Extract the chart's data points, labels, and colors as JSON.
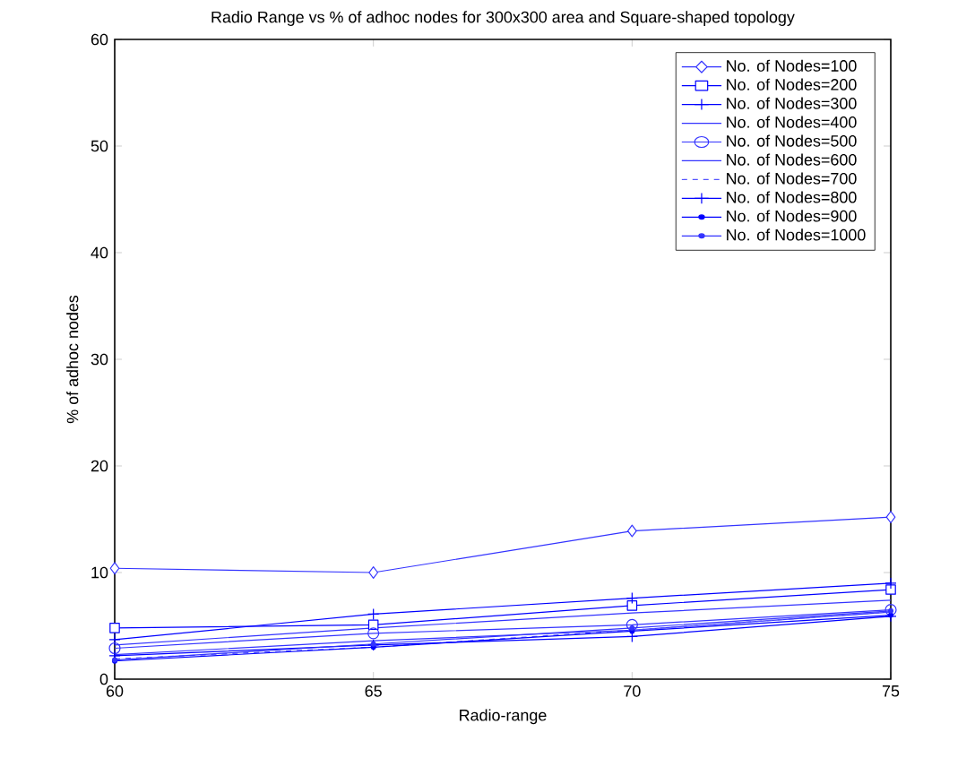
{
  "chart_data": {
    "type": "line",
    "title": "Radio Range vs % of adhoc nodes for 300x300 area and Square-shaped topology",
    "xlabel": "Radio-range",
    "ylabel": "% of adhoc nodes",
    "x": [
      60,
      65,
      70,
      75
    ],
    "xlim": [
      60,
      75
    ],
    "xticks": [
      60,
      65,
      70,
      75
    ],
    "ylim": [
      0,
      60
    ],
    "yticks": [
      0,
      10,
      20,
      30,
      40,
      50,
      60
    ],
    "grid": false,
    "legend": "top right",
    "series": [
      {
        "name": "No. of Nodes=100",
        "color": "#3333ff",
        "marker": "diamond",
        "line_style": "solid",
        "values": [
          10.4,
          10.0,
          13.9,
          15.2
        ]
      },
      {
        "name": "No. of Nodes=200",
        "color": "#0000ff",
        "marker": "square",
        "line_style": "solid",
        "values": [
          4.8,
          5.1,
          6.9,
          8.4
        ]
      },
      {
        "name": "No. of Nodes=300",
        "color": "#0000ff",
        "marker": "cross",
        "line_style": "solid",
        "values": [
          3.7,
          6.1,
          7.6,
          9.0
        ]
      },
      {
        "name": "No. of Nodes=400",
        "color": "#3333ff",
        "marker": "none",
        "line_style": "solid",
        "values": [
          3.2,
          4.8,
          6.2,
          7.4
        ]
      },
      {
        "name": "No. of Nodes=500",
        "color": "#3333ff",
        "marker": "circle",
        "line_style": "solid",
        "values": [
          2.9,
          4.3,
          5.1,
          6.5
        ]
      },
      {
        "name": "No. of Nodes=600",
        "color": "#3333ff",
        "marker": "none",
        "line_style": "solid",
        "values": [
          2.3,
          3.6,
          4.6,
          6.3
        ]
      },
      {
        "name": "No. of Nodes=700",
        "color": "#5555ff",
        "marker": "none",
        "line_style": "dashed",
        "values": [
          1.9,
          3.0,
          4.6,
          6.3
        ]
      },
      {
        "name": "No. of Nodes=800",
        "color": "#0000ff",
        "marker": "cross",
        "line_style": "solid",
        "values": [
          2.2,
          3.2,
          4.0,
          5.9
        ]
      },
      {
        "name": "No. of Nodes=900",
        "color": "#0000ff",
        "marker": "dot",
        "line_style": "solid",
        "values": [
          1.7,
          3.0,
          4.5,
          6.0
        ]
      },
      {
        "name": "No. of Nodes=1000",
        "color": "#3333ff",
        "marker": "dot",
        "line_style": "solid",
        "values": [
          1.8,
          3.3,
          4.8,
          6.4
        ]
      }
    ]
  }
}
